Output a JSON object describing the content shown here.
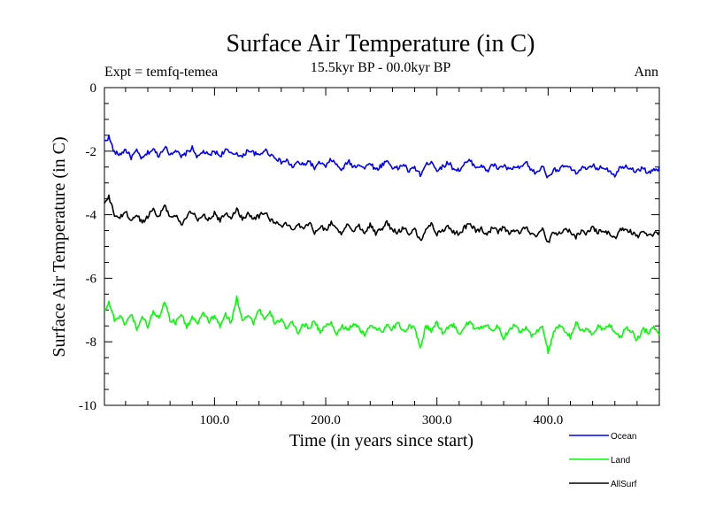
{
  "header": {
    "title": "Surface Air Temperature (in C)",
    "subtitle": "15.5kyr BP - 00.0kyr BP",
    "left_note": "Expt = temfq-temea",
    "right_note": "Ann"
  },
  "chart_data": {
    "type": "line",
    "title": "Surface Air Temperature (in C)",
    "subtitle": "15.5kyr BP - 00.0kyr BP",
    "xlabel": "Time (in years since start)",
    "ylabel": "Surface Air Temperature (in C)",
    "xlim": [
      1,
      500
    ],
    "ylim": [
      -10,
      0
    ],
    "x_ticks": [
      100,
      200,
      300,
      400
    ],
    "x_tick_labels": [
      "100.0",
      "200.0",
      "300.0",
      "400.0"
    ],
    "y_ticks": [
      0,
      -2,
      -4,
      -6,
      -8,
      -10
    ],
    "y_tick_labels": [
      "0",
      "-2",
      "-4",
      "-6",
      "-8",
      "-10"
    ],
    "legend_position": "bottom-right",
    "x_sample": [
      1,
      5,
      10,
      15,
      20,
      25,
      30,
      35,
      40,
      45,
      50,
      55,
      60,
      65,
      70,
      75,
      80,
      85,
      90,
      95,
      100,
      105,
      110,
      115,
      120,
      125,
      130,
      135,
      140,
      145,
      150,
      155,
      160,
      165,
      170,
      175,
      180,
      185,
      190,
      195,
      200,
      205,
      210,
      215,
      220,
      225,
      230,
      235,
      240,
      245,
      250,
      255,
      260,
      265,
      270,
      275,
      280,
      285,
      290,
      295,
      300,
      305,
      310,
      315,
      320,
      325,
      330,
      335,
      340,
      345,
      350,
      355,
      360,
      365,
      370,
      375,
      380,
      385,
      390,
      395,
      400,
      405,
      410,
      415,
      420,
      425,
      430,
      435,
      440,
      445,
      450,
      455,
      460,
      465,
      470,
      475,
      480,
      485,
      490,
      495,
      500
    ],
    "series": [
      {
        "name": "Ocean",
        "color": "#0000ff",
        "values": [
          -1.7,
          -1.55,
          -2.05,
          -2.1,
          -1.95,
          -2.2,
          -2.0,
          -2.25,
          -2.05,
          -1.95,
          -2.15,
          -1.85,
          -2.1,
          -1.95,
          -2.2,
          -2.05,
          -1.9,
          -2.2,
          -2.0,
          -2.15,
          -2.0,
          -2.15,
          -1.95,
          -2.1,
          -2.05,
          -2.2,
          -1.95,
          -2.05,
          -2.15,
          -1.95,
          -2.1,
          -2.2,
          -2.35,
          -2.3,
          -2.5,
          -2.35,
          -2.45,
          -2.3,
          -2.55,
          -2.35,
          -2.5,
          -2.25,
          -2.45,
          -2.6,
          -2.3,
          -2.5,
          -2.4,
          -2.55,
          -2.35,
          -2.6,
          -2.45,
          -2.3,
          -2.5,
          -2.55,
          -2.4,
          -2.65,
          -2.5,
          -2.75,
          -2.45,
          -2.3,
          -2.6,
          -2.5,
          -2.35,
          -2.55,
          -2.6,
          -2.4,
          -2.3,
          -2.5,
          -2.45,
          -2.65,
          -2.4,
          -2.55,
          -2.45,
          -2.6,
          -2.5,
          -2.55,
          -2.35,
          -2.6,
          -2.7,
          -2.45,
          -2.85,
          -2.55,
          -2.6,
          -2.45,
          -2.55,
          -2.7,
          -2.5,
          -2.6,
          -2.45,
          -2.55,
          -2.5,
          -2.6,
          -2.75,
          -2.5,
          -2.45,
          -2.55,
          -2.65,
          -2.5,
          -2.7,
          -2.6,
          -2.55
        ]
      },
      {
        "name": "Land",
        "color": "#00ff00",
        "values": [
          -7.0,
          -6.75,
          -7.3,
          -7.2,
          -7.45,
          -7.1,
          -7.6,
          -7.2,
          -7.5,
          -7.05,
          -7.25,
          -6.7,
          -7.3,
          -7.4,
          -7.1,
          -7.55,
          -7.2,
          -7.45,
          -7.1,
          -7.35,
          -7.2,
          -7.5,
          -7.15,
          -7.4,
          -6.6,
          -7.3,
          -7.15,
          -7.4,
          -6.95,
          -7.3,
          -7.1,
          -7.45,
          -7.25,
          -7.6,
          -7.4,
          -7.7,
          -7.45,
          -7.55,
          -7.35,
          -7.7,
          -7.5,
          -7.4,
          -7.75,
          -7.5,
          -7.65,
          -7.4,
          -7.6,
          -7.8,
          -7.45,
          -7.55,
          -7.7,
          -7.5,
          -7.6,
          -7.35,
          -7.7,
          -7.5,
          -7.6,
          -8.2,
          -7.5,
          -7.65,
          -7.4,
          -7.7,
          -7.55,
          -7.45,
          -7.8,
          -7.5,
          -7.35,
          -7.65,
          -7.55,
          -7.45,
          -7.7,
          -7.5,
          -7.9,
          -7.6,
          -7.45,
          -7.7,
          -7.55,
          -7.8,
          -7.65,
          -7.5,
          -8.35,
          -7.7,
          -7.5,
          -7.65,
          -7.85,
          -7.4,
          -7.7,
          -7.55,
          -7.8,
          -7.5,
          -7.6,
          -7.45,
          -7.7,
          -7.85,
          -7.55,
          -7.65,
          -7.95,
          -7.6,
          -7.7,
          -7.5,
          -7.8
        ]
      },
      {
        "name": "AllSurf",
        "color": "#000000",
        "values": [
          -3.65,
          -3.45,
          -4.0,
          -4.1,
          -3.9,
          -4.2,
          -4.0,
          -4.25,
          -4.05,
          -3.8,
          -4.1,
          -3.65,
          -4.1,
          -4.0,
          -4.3,
          -4.05,
          -3.9,
          -4.2,
          -4.0,
          -4.15,
          -3.95,
          -4.2,
          -3.95,
          -4.1,
          -3.8,
          -4.15,
          -3.95,
          -4.1,
          -4.05,
          -3.9,
          -4.15,
          -4.25,
          -4.35,
          -4.3,
          -4.45,
          -4.3,
          -4.4,
          -4.25,
          -4.55,
          -4.35,
          -4.5,
          -4.25,
          -4.45,
          -4.6,
          -4.3,
          -4.5,
          -4.35,
          -4.55,
          -4.3,
          -4.6,
          -4.45,
          -4.25,
          -4.5,
          -4.55,
          -4.4,
          -4.6,
          -4.45,
          -4.85,
          -4.45,
          -4.3,
          -4.6,
          -4.5,
          -4.35,
          -4.55,
          -4.6,
          -4.4,
          -4.3,
          -4.5,
          -4.45,
          -4.65,
          -4.4,
          -4.55,
          -4.4,
          -4.6,
          -4.5,
          -4.55,
          -4.35,
          -4.6,
          -4.7,
          -4.45,
          -4.9,
          -4.55,
          -4.6,
          -4.45,
          -4.55,
          -4.7,
          -4.5,
          -4.6,
          -4.4,
          -4.55,
          -4.5,
          -4.6,
          -4.75,
          -4.5,
          -4.45,
          -4.55,
          -4.7,
          -4.5,
          -4.7,
          -4.6,
          -4.55
        ]
      }
    ]
  }
}
